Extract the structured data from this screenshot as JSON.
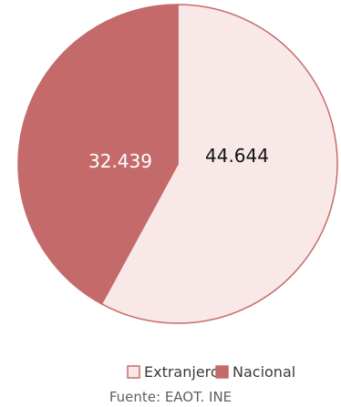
{
  "chart_data": {
    "type": "pie",
    "slices": [
      {
        "label": "Extranjero",
        "value": 44644,
        "display": "44.644",
        "fill": "#f9e8e8",
        "stroke": "#c76b6b",
        "label_color": "#111111"
      },
      {
        "label": "Nacional",
        "value": 32439,
        "display": "32.439",
        "fill": "#c46a6a",
        "stroke": "#c46a6a",
        "label_color": "#ffffff"
      }
    ],
    "start_angle_deg": 0,
    "direction": "clockwise",
    "legend_position": "bottom",
    "source": "Fuente: EAOT. INE"
  }
}
